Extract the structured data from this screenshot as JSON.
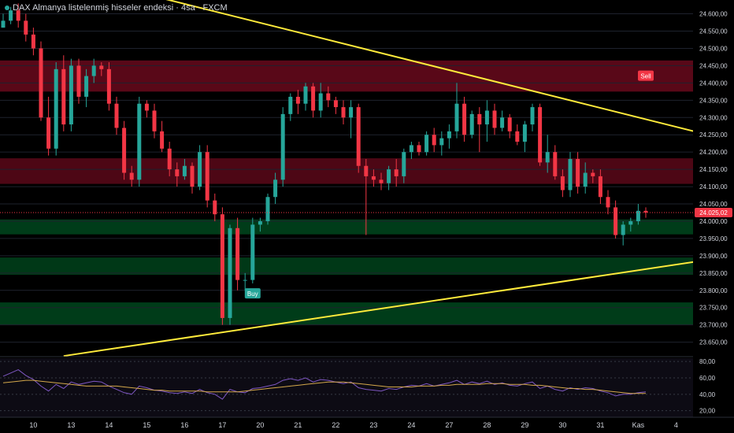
{
  "title": "DAX Almanya listelenmiş hisseler endeksi · 4sa · FXCM",
  "colors": {
    "background": "#000000",
    "up": "#26a69a",
    "down": "#f23645",
    "trendline": "#ffeb3b",
    "axis_text": "#d1d4dc",
    "rsi": "#7e57c2",
    "rsi_ma": "#d4a84b",
    "last_price_bg": "#f23645"
  },
  "chart_data": {
    "type": "candlestick",
    "y_axis": {
      "range": [
        23615,
        24640
      ],
      "ticks": [
        23650,
        23700,
        23750,
        23800,
        23850,
        23900,
        23950,
        24000,
        24050,
        24100,
        24150,
        24200,
        24250,
        24300,
        24350,
        24400,
        24450,
        24500,
        24550,
        24600
      ],
      "tick_labels": [
        "23.650,00",
        "23.700,00",
        "23.750,00",
        "23.800,00",
        "23.850,00",
        "23.900,00",
        "23.950,00",
        "24.000,00",
        "24.050,00",
        "24.100,00",
        "24.150,00",
        "24.200,00",
        "24.250,00",
        "24.300,00",
        "24.350,00",
        "24.400,00",
        "24.450,00",
        "24.500,00",
        "24.550,00",
        "24.600,00"
      ]
    },
    "x_axis": {
      "labels": [
        "10",
        "13",
        "14",
        "15",
        "16",
        "17",
        "20",
        "21",
        "22",
        "23",
        "24",
        "27",
        "28",
        "29",
        "30",
        "31",
        "Kas",
        "4"
      ],
      "label_bar_index": [
        4,
        9,
        14,
        19,
        24,
        29,
        34,
        39,
        44,
        49,
        54,
        59,
        64,
        69,
        74,
        79,
        84,
        89
      ]
    },
    "last_price": 24025.02,
    "last_price_label": "24.025,02",
    "candles": [
      [
        24560,
        24600,
        24560,
        24580
      ],
      [
        24580,
        24620,
        24570,
        24610
      ],
      [
        24610,
        24630,
        24560,
        24580
      ],
      [
        24580,
        24600,
        24520,
        24540
      ],
      [
        24540,
        24560,
        24480,
        24500
      ],
      [
        24500,
        24520,
        24290,
        24300
      ],
      [
        24300,
        24360,
        24190,
        24210
      ],
      [
        24210,
        24460,
        24190,
        24440
      ],
      [
        24440,
        24480,
        24260,
        24280
      ],
      [
        24280,
        24470,
        24260,
        24450
      ],
      [
        24450,
        24470,
        24340,
        24360
      ],
      [
        24360,
        24440,
        24330,
        24420
      ],
      [
        24420,
        24470,
        24400,
        24450
      ],
      [
        24450,
        24460,
        24420,
        24440
      ],
      [
        24440,
        24460,
        24320,
        24340
      ],
      [
        24340,
        24360,
        24250,
        24270
      ],
      [
        24270,
        24290,
        24120,
        24140
      ],
      [
        24140,
        24160,
        24100,
        24120
      ],
      [
        24120,
        24360,
        24100,
        24340
      ],
      [
        24340,
        24350,
        24300,
        24320
      ],
      [
        24320,
        24340,
        24240,
        24260
      ],
      [
        24260,
        24290,
        24200,
        24210
      ],
      [
        24210,
        24230,
        24130,
        24150
      ],
      [
        24150,
        24170,
        24100,
        24130
      ],
      [
        24130,
        24180,
        24120,
        24160
      ],
      [
        24160,
        24170,
        24080,
        24100
      ],
      [
        24100,
        24220,
        24090,
        24200
      ],
      [
        24200,
        24220,
        24040,
        24060
      ],
      [
        24060,
        24080,
        24000,
        24020
      ],
      [
        24020,
        24040,
        23700,
        23720
      ],
      [
        23720,
        23990,
        23700,
        23980
      ],
      [
        23980,
        24010,
        23800,
        23830
      ],
      [
        23830,
        23850,
        23800,
        23830
      ],
      [
        23830,
        24010,
        23820,
        23990
      ],
      [
        23990,
        24010,
        23970,
        24000
      ],
      [
        24000,
        24080,
        23990,
        24070
      ],
      [
        24070,
        24140,
        24050,
        24120
      ],
      [
        24120,
        24330,
        24100,
        24310
      ],
      [
        24310,
        24370,
        24290,
        24360
      ],
      [
        24360,
        24380,
        24310,
        24340
      ],
      [
        24340,
        24400,
        24320,
        24390
      ],
      [
        24390,
        24400,
        24300,
        24320
      ],
      [
        24320,
        24400,
        24300,
        24370
      ],
      [
        24370,
        24390,
        24330,
        24350
      ],
      [
        24350,
        24360,
        24310,
        24330
      ],
      [
        24330,
        24350,
        24280,
        24300
      ],
      [
        24300,
        24350,
        24240,
        24330
      ],
      [
        24330,
        24340,
        24140,
        24160
      ],
      [
        24160,
        24180,
        23960,
        24130
      ],
      [
        24130,
        24150,
        24100,
        24120
      ],
      [
        24120,
        24140,
        24090,
        24110
      ],
      [
        24110,
        24160,
        24090,
        24150
      ],
      [
        24150,
        24180,
        24100,
        24130
      ],
      [
        24130,
        24210,
        24110,
        24200
      ],
      [
        24200,
        24230,
        24180,
        24220
      ],
      [
        24220,
        24230,
        24190,
        24200
      ],
      [
        24200,
        24260,
        24190,
        24250
      ],
      [
        24250,
        24270,
        24200,
        24220
      ],
      [
        24220,
        24260,
        24190,
        24240
      ],
      [
        24240,
        24280,
        24210,
        24260
      ],
      [
        24260,
        24400,
        24240,
        24340
      ],
      [
        24340,
        24360,
        24230,
        24250
      ],
      [
        24250,
        24320,
        24240,
        24310
      ],
      [
        24310,
        24330,
        24200,
        24280
      ],
      [
        24280,
        24350,
        24230,
        24320
      ],
      [
        24320,
        24340,
        24250,
        24270
      ],
      [
        24270,
        24320,
        24260,
        24300
      ],
      [
        24300,
        24310,
        24240,
        24260
      ],
      [
        24260,
        24280,
        24220,
        24230
      ],
      [
        24230,
        24290,
        24200,
        24280
      ],
      [
        24280,
        24340,
        24260,
        24330
      ],
      [
        24330,
        24340,
        24160,
        24170
      ],
      [
        24170,
        24250,
        24140,
        24200
      ],
      [
        24200,
        24220,
        24120,
        24130
      ],
      [
        24130,
        24150,
        24070,
        24090
      ],
      [
        24090,
        24200,
        24070,
        24180
      ],
      [
        24180,
        24200,
        24080,
        24100
      ],
      [
        24100,
        24170,
        24080,
        24140
      ],
      [
        24140,
        24150,
        24110,
        24130
      ],
      [
        24130,
        24150,
        24050,
        24070
      ],
      [
        24070,
        24090,
        24020,
        24040
      ],
      [
        24040,
        24060,
        23950,
        23960
      ],
      [
        23960,
        24000,
        23930,
        23990
      ],
      [
        23990,
        24010,
        23970,
        24000
      ],
      [
        24000,
        24050,
        23990,
        24030
      ],
      [
        24030,
        24040,
        24010,
        24025
      ]
    ],
    "trendlines": [
      {
        "name": "resistance",
        "from": [
          0,
          24760
        ],
        "to": [
          106,
          24180
        ]
      },
      {
        "name": "support",
        "from": [
          8,
          23610
        ],
        "to": [
          106,
          23930
        ]
      }
    ],
    "zones": [
      {
        "from": 24375,
        "to": 24465,
        "color": "#ff1744",
        "opacity": 0.35
      },
      {
        "from": 24108,
        "to": 24182,
        "color": "#ff1744",
        "opacity": 0.3
      },
      {
        "from": 23962,
        "to": 24005,
        "color": "#00c853",
        "opacity": 0.3
      },
      {
        "from": 23845,
        "to": 23895,
        "color": "#00c853",
        "opacity": 0.28
      },
      {
        "from": 23700,
        "to": 23765,
        "color": "#00c853",
        "opacity": 0.3
      }
    ],
    "signals": [
      {
        "label": "Sell",
        "bar": 85,
        "price": 24420,
        "type": "sell"
      },
      {
        "label": "Buy",
        "bar": 33,
        "price": 23790,
        "type": "buy"
      }
    ],
    "rsi": {
      "range": [
        12,
        84
      ],
      "ticks": [
        20,
        40,
        60,
        80
      ],
      "tick_labels": [
        "20,00",
        "40,00",
        "60,00",
        "80,00"
      ],
      "values": [
        62,
        66,
        70,
        63,
        58,
        50,
        44,
        52,
        47,
        55,
        52,
        54,
        56,
        55,
        50,
        46,
        42,
        40,
        50,
        48,
        45,
        44,
        42,
        41,
        43,
        41,
        46,
        42,
        40,
        34,
        46,
        43,
        42,
        47,
        48,
        50,
        52,
        57,
        59,
        57,
        60,
        55,
        58,
        57,
        55,
        53,
        55,
        48,
        46,
        45,
        44,
        47,
        46,
        49,
        51,
        50,
        53,
        50,
        52,
        54,
        57,
        52,
        55,
        53,
        56,
        52,
        54,
        51,
        50,
        53,
        55,
        47,
        50,
        46,
        44,
        48,
        46,
        48,
        47,
        44,
        42,
        38,
        40,
        40,
        42,
        43
      ],
      "ma": [
        54,
        55,
        56,
        57,
        57,
        56,
        55,
        54,
        53,
        52,
        51,
        50,
        50,
        50,
        50,
        50,
        49,
        48,
        47,
        46,
        45,
        45,
        44,
        44,
        44,
        44,
        44,
        43,
        43,
        43,
        43,
        43,
        44,
        45,
        46,
        47,
        48,
        49,
        50,
        51,
        52,
        53,
        54,
        55,
        55,
        55,
        54,
        53,
        52,
        51,
        50,
        49,
        49,
        49,
        49,
        50,
        50,
        50,
        51,
        51,
        52,
        52,
        52,
        52,
        53,
        53,
        53,
        52,
        52,
        52,
        51,
        51,
        50,
        49,
        48,
        47,
        47,
        46,
        46,
        45,
        44,
        43,
        42,
        41,
        41,
        41
      ]
    }
  }
}
